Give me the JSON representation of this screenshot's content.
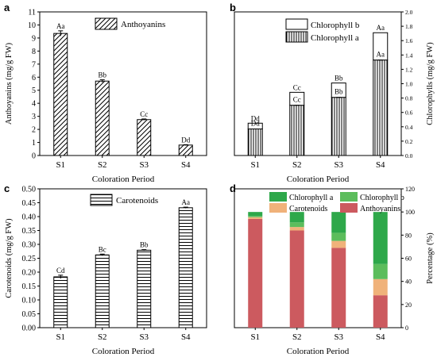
{
  "figure": {
    "panel_letters": [
      "a",
      "b",
      "c",
      "d"
    ]
  },
  "chart_data": [
    {
      "panel": "a",
      "type": "bar",
      "categories": [
        "S1",
        "S2",
        "S3",
        "S4"
      ],
      "series": [
        {
          "name": "Anthoyanins",
          "values": [
            9.35,
            5.7,
            2.75,
            0.8
          ],
          "errors": [
            0.2,
            0.1,
            0.05,
            0.03
          ],
          "labels": [
            "Aa",
            "Bb",
            "Cc",
            "Dd"
          ],
          "pattern": "diagonal"
        }
      ],
      "xlabel": "Coloration Period",
      "ylabel": "Anthoyanins (mg/g FW)",
      "ylim": [
        0,
        11
      ],
      "yticks": [
        0,
        1,
        2,
        3,
        4,
        5,
        6,
        7,
        8,
        9,
        10,
        11
      ],
      "legend": "top-right"
    },
    {
      "panel": "b",
      "type": "bar",
      "stacked": true,
      "categories": [
        "S1",
        "S2",
        "S3",
        "S4"
      ],
      "series": [
        {
          "name": "Chlorophyll b",
          "values": [
            0.08,
            0.18,
            0.2,
            0.38
          ],
          "labels": [
            "Dd",
            "Cc",
            "Bb",
            "Aa"
          ],
          "pattern": "plain"
        },
        {
          "name": "Chlorophyll a",
          "values": [
            0.37,
            0.7,
            0.81,
            1.33
          ],
          "labels": [
            "Dd",
            "Cc",
            "Bb",
            "Aa"
          ],
          "pattern": "vertical"
        }
      ],
      "xlabel": "Coloration Period",
      "ylabel": "Chlorophylls (mg/g FW)",
      "ylim": [
        0,
        2.0
      ],
      "yticks": [
        "0.0",
        "0.2",
        "0.4",
        "0.6",
        "0.8",
        "1.0",
        "1.2",
        "1.4",
        "1.6",
        "1.8",
        "2.0"
      ],
      "legend": "top-right"
    },
    {
      "panel": "c",
      "type": "bar",
      "categories": [
        "S1",
        "S2",
        "S3",
        "S4"
      ],
      "series": [
        {
          "name": "Carotenoids",
          "values": [
            0.183,
            0.262,
            0.279,
            0.432
          ],
          "errors": [
            0.006,
            0.003,
            0.002,
            0.002
          ],
          "labels": [
            "Cd",
            "Bc",
            "Bb",
            "Aa"
          ],
          "pattern": "horizontal"
        }
      ],
      "xlabel": "Coloration Period",
      "ylabel": "Carotenoids (mg/g FW)",
      "ylim": [
        0,
        0.5
      ],
      "yticks": [
        "0.00",
        "0.05",
        "0.10",
        "0.15",
        "0.20",
        "0.25",
        "0.30",
        "0.35",
        "0.40",
        "0.45",
        "0.50"
      ],
      "legend": "top-right"
    },
    {
      "panel": "d",
      "type": "bar",
      "stacked": true,
      "categories": [
        "S1",
        "S2",
        "S3",
        "S4"
      ],
      "series": [
        {
          "name": "Anthoyanins",
          "values": [
            94,
            84,
            69,
            28
          ],
          "color": "#CC5A5F"
        },
        {
          "name": "Carotenoids",
          "values": [
            1.5,
            3,
            6,
            14
          ],
          "color": "#F0B27A"
        },
        {
          "name": "Chlorophyll b",
          "values": [
            1,
            4,
            7,
            13
          ],
          "color": "#5CBD5C"
        },
        {
          "name": "Chlorophyll a",
          "values": [
            3.5,
            9,
            18,
            45
          ],
          "color": "#2EA84A"
        }
      ],
      "xlabel": "Coloration Period",
      "ylabel": "Percentage (%)",
      "ylim": [
        0,
        120
      ],
      "yticks": [
        0,
        20,
        40,
        60,
        80,
        100,
        120
      ],
      "legend": "top"
    }
  ]
}
